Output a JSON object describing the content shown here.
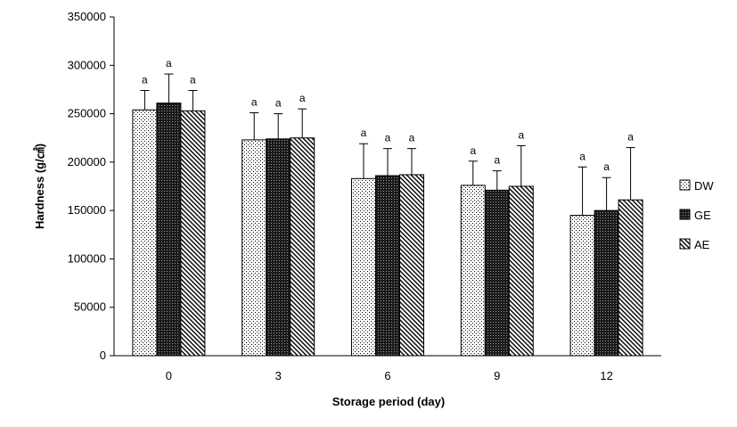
{
  "chart_data": {
    "type": "bar",
    "title": "",
    "xlabel": "Storage period (day)",
    "ylabel": "Hardness (g/㎠)",
    "categories": [
      "0",
      "3",
      "6",
      "9",
      "12"
    ],
    "ylim": [
      0,
      350000
    ],
    "yticks": [
      0,
      50000,
      100000,
      150000,
      200000,
      250000,
      300000,
      350000
    ],
    "ytick_labels": [
      "0",
      "50000",
      "100000",
      "150000",
      "200000",
      "250000",
      "300000",
      "350000"
    ],
    "grid": false,
    "legend_position": "right",
    "series": [
      {
        "name": "DW",
        "pattern": "dots",
        "values": [
          254000,
          223000,
          183000,
          176000,
          145000
        ],
        "errors": [
          20000,
          28000,
          36000,
          25000,
          50000
        ],
        "labels": [
          "a",
          "a",
          "a",
          "a",
          "a"
        ]
      },
      {
        "name": "GE",
        "pattern": "dense-dots",
        "values": [
          261000,
          224000,
          186000,
          171000,
          150000
        ],
        "errors": [
          30000,
          26000,
          28000,
          20000,
          34000
        ],
        "labels": [
          "a",
          "a",
          "a",
          "a",
          "a"
        ]
      },
      {
        "name": "AE",
        "pattern": "diagonal",
        "values": [
          253000,
          225000,
          187000,
          175000,
          161000
        ],
        "errors": [
          21000,
          30000,
          27000,
          42000,
          54000
        ],
        "labels": [
          "a",
          "a",
          "a",
          "a",
          "a"
        ]
      }
    ]
  }
}
